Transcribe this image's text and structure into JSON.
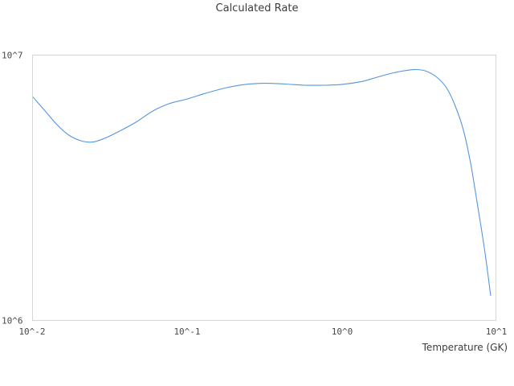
{
  "title": "Calculated Rate",
  "chart_data": {
    "type": "line",
    "title": "Calculated Rate",
    "xlabel": "Temperature (GK)",
    "ylabel": "",
    "x_scale": "log",
    "y_scale": "log",
    "xlim": [
      0.01,
      10
    ],
    "ylim": [
      1000000,
      10000000
    ],
    "x_tick_labels": [
      "10^-2",
      "10^-1",
      "10^0",
      "10^1"
    ],
    "y_tick_labels": [
      "10^6",
      "10^7"
    ],
    "grid": false,
    "legend_position": "none",
    "line_color": "#5596dd",
    "frame_color": "#d6d6d6",
    "series": [
      {
        "name": "calculated-rate",
        "x": [
          0.01,
          0.012,
          0.0143,
          0.0171,
          0.0205,
          0.0245,
          0.0293,
          0.0372,
          0.0473,
          0.06,
          0.0762,
          0.1,
          0.131,
          0.176,
          0.237,
          0.319,
          0.431,
          0.582,
          0.787,
          1.0,
          1.34,
          1.71,
          2.17,
          2.68,
          3.09,
          3.56,
          4.16,
          4.8,
          5.46,
          6.2,
          6.9,
          7.7,
          8.5,
          9.3
        ],
        "y": [
          6970000,
          6170000,
          5480000,
          5000000,
          4760000,
          4710000,
          4870000,
          5210000,
          5630000,
          6170000,
          6570000,
          6850000,
          7190000,
          7530000,
          7770000,
          7850000,
          7800000,
          7720000,
          7720000,
          7770000,
          7960000,
          8280000,
          8600000,
          8790000,
          8850000,
          8720000,
          8280000,
          7560000,
          6480000,
          5210000,
          3900000,
          2650000,
          1840000,
          1240000
        ]
      }
    ]
  }
}
